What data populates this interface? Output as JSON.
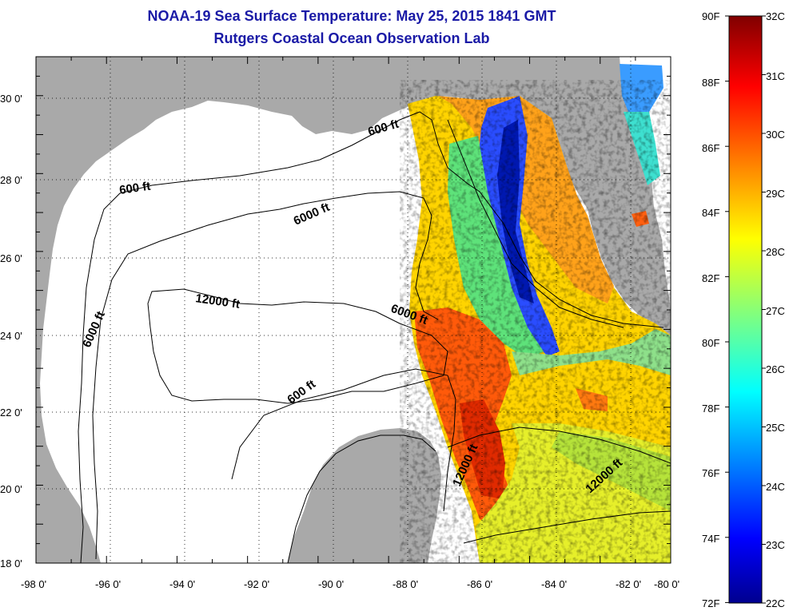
{
  "title": "NOAA-19 Sea Surface Temperature:  May 25, 2015 1841 GMT",
  "subtitle": "Rutgers Coastal Ocean Observation Lab",
  "longitude_ticks": [
    "-98 0'",
    "-96 0'",
    "-94 0'",
    "-92 0'",
    "-90 0'",
    "-88 0'",
    "-86 0'",
    "-84 0'",
    "-82 0'",
    "-80 0'"
  ],
  "latitude_ticks": [
    "30 0'",
    "28 0'",
    "26 0'",
    "24 0'",
    "22 0'",
    "20 0'",
    "18 0'"
  ],
  "contour_labels": [
    {
      "id": "c600-north",
      "text": "600 ft"
    },
    {
      "id": "c600-west",
      "text": "600 ft"
    },
    {
      "id": "c6000-north",
      "text": "6000 ft"
    },
    {
      "id": "c6000-west",
      "text": "6000 ft"
    },
    {
      "id": "c12000-center",
      "text": "12000 ft"
    },
    {
      "id": "c6000-east",
      "text": "6000 ft"
    },
    {
      "id": "c600-south",
      "text": "600 ft"
    },
    {
      "id": "c12000-channel",
      "text": "12000 ft"
    },
    {
      "id": "c12000-caribbean",
      "text": "12000 ft"
    }
  ],
  "colorbar": {
    "fahrenheit_labels": [
      "90F",
      "88F",
      "86F",
      "84F",
      "82F",
      "80F",
      "78F",
      "76F",
      "74F",
      "72F"
    ],
    "celsius_labels": [
      "32C",
      "31C",
      "30C",
      "29C",
      "28C",
      "27C",
      "26C",
      "25C",
      "24C",
      "23C",
      "22C"
    ],
    "min_c": 22,
    "max_c": 32,
    "colormap": "jet"
  },
  "colors": {
    "title": "#1a1aa6",
    "land": "#a9a9a9",
    "ocean_no_data": "#ffffff"
  }
}
